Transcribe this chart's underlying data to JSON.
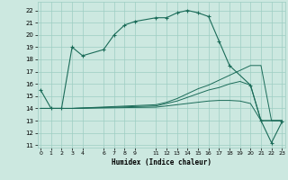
{
  "xlabel": "Humidex (Indice chaleur)",
  "xlim": [
    -0.3,
    23.3
  ],
  "ylim": [
    10.8,
    22.7
  ],
  "yticks": [
    11,
    12,
    13,
    14,
    15,
    16,
    17,
    18,
    19,
    20,
    21,
    22
  ],
  "xticks": [
    0,
    1,
    2,
    3,
    4,
    6,
    7,
    8,
    9,
    11,
    12,
    13,
    14,
    15,
    16,
    17,
    18,
    19,
    20,
    21,
    22,
    23
  ],
  "bg_color": "#cce8e0",
  "grid_color": "#9ecec2",
  "line_color": "#1a6b58",
  "line1_x": [
    0,
    1,
    2,
    3,
    4,
    6,
    7,
    8,
    9,
    11,
    12,
    13,
    14,
    15,
    16,
    17,
    18,
    20,
    21,
    22,
    23
  ],
  "line1_y": [
    15.5,
    14.0,
    14.0,
    19.0,
    18.3,
    18.8,
    20.0,
    20.8,
    21.1,
    21.4,
    21.4,
    21.8,
    22.0,
    21.8,
    21.5,
    19.5,
    17.5,
    15.9,
    13.0,
    11.2,
    12.9
  ],
  "line2_x": [
    0,
    3,
    11,
    12,
    13,
    14,
    15,
    16,
    17,
    18,
    19,
    20,
    21,
    22,
    23
  ],
  "line2_y": [
    14.0,
    14.0,
    14.3,
    14.5,
    14.8,
    15.2,
    15.6,
    15.9,
    16.3,
    16.7,
    17.1,
    17.5,
    17.5,
    13.0,
    13.0
  ],
  "line3_x": [
    0,
    3,
    11,
    12,
    13,
    14,
    15,
    16,
    17,
    18,
    19,
    20,
    21,
    22,
    23
  ],
  "line3_y": [
    14.0,
    14.0,
    14.2,
    14.4,
    14.6,
    14.9,
    15.2,
    15.5,
    15.7,
    16.0,
    16.2,
    15.9,
    13.0,
    13.0,
    13.0
  ],
  "line4_x": [
    0,
    3,
    11,
    12,
    13,
    14,
    15,
    16,
    17,
    18,
    19,
    20,
    21,
    22,
    23
  ],
  "line4_y": [
    14.0,
    14.0,
    14.1,
    14.2,
    14.3,
    14.4,
    14.5,
    14.6,
    14.65,
    14.65,
    14.6,
    14.4,
    13.0,
    13.0,
    13.0
  ]
}
